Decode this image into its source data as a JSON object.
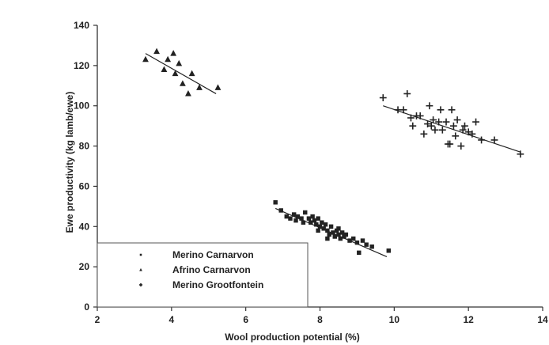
{
  "chart_data": {
    "type": "scatter",
    "xlabel": "Wool production potential (%)",
    "ylabel": "Ewe productivity (kg lamb/ewe)",
    "xlim": [
      2,
      14
    ],
    "ylim": [
      0,
      140
    ],
    "xticks": [
      2,
      4,
      6,
      8,
      10,
      12,
      14
    ],
    "yticks": [
      0,
      20,
      40,
      60,
      80,
      100,
      120,
      140
    ],
    "grid": false,
    "legend": "bottom-left",
    "series": [
      {
        "name": "Merino Carnarvon",
        "marker": "square",
        "points": [
          [
            6.8,
            52
          ],
          [
            6.95,
            48
          ],
          [
            7.1,
            45
          ],
          [
            7.2,
            44
          ],
          [
            7.3,
            46
          ],
          [
            7.35,
            43
          ],
          [
            7.4,
            45
          ],
          [
            7.5,
            44
          ],
          [
            7.55,
            42
          ],
          [
            7.6,
            47
          ],
          [
            7.7,
            44
          ],
          [
            7.75,
            42
          ],
          [
            7.8,
            45
          ],
          [
            7.85,
            43
          ],
          [
            7.9,
            41
          ],
          [
            7.95,
            44
          ],
          [
            8.0,
            40
          ],
          [
            8.05,
            42
          ],
          [
            8.1,
            39
          ],
          [
            8.15,
            41
          ],
          [
            8.2,
            38
          ],
          [
            8.25,
            36
          ],
          [
            8.3,
            40
          ],
          [
            8.35,
            37
          ],
          [
            8.4,
            35
          ],
          [
            8.45,
            38
          ],
          [
            8.5,
            36
          ],
          [
            8.55,
            34
          ],
          [
            8.6,
            37
          ],
          [
            8.65,
            35
          ],
          [
            8.7,
            36
          ],
          [
            8.8,
            33
          ],
          [
            8.9,
            34
          ],
          [
            9.0,
            32
          ],
          [
            9.05,
            27
          ],
          [
            9.15,
            33
          ],
          [
            9.25,
            31
          ],
          [
            9.4,
            30
          ],
          [
            9.85,
            28
          ],
          [
            8.2,
            34
          ],
          [
            8.5,
            39
          ],
          [
            7.95,
            38
          ]
        ],
        "fit": [
          [
            6.8,
            49
          ],
          [
            9.8,
            25
          ]
        ]
      },
      {
        "name": "Afrino Carnarvon",
        "marker": "triangle",
        "points": [
          [
            3.3,
            123
          ],
          [
            3.6,
            127
          ],
          [
            3.8,
            118
          ],
          [
            3.9,
            123
          ],
          [
            4.05,
            126
          ],
          [
            4.1,
            116
          ],
          [
            4.2,
            121
          ],
          [
            4.3,
            111
          ],
          [
            4.45,
            106
          ],
          [
            4.55,
            116
          ],
          [
            4.75,
            109
          ],
          [
            5.25,
            109
          ]
        ],
        "fit": [
          [
            3.3,
            126
          ],
          [
            5.2,
            106
          ]
        ]
      },
      {
        "name": "Merino Grootfontein",
        "marker": "plus",
        "points": [
          [
            9.7,
            104
          ],
          [
            10.1,
            98
          ],
          [
            10.25,
            98
          ],
          [
            10.35,
            106
          ],
          [
            10.45,
            94
          ],
          [
            10.5,
            90
          ],
          [
            10.6,
            95
          ],
          [
            10.7,
            95
          ],
          [
            10.8,
            86
          ],
          [
            10.9,
            91
          ],
          [
            10.95,
            100
          ],
          [
            11.0,
            90
          ],
          [
            11.05,
            93
          ],
          [
            11.1,
            88
          ],
          [
            11.2,
            92
          ],
          [
            11.25,
            98
          ],
          [
            11.3,
            88
          ],
          [
            11.4,
            92
          ],
          [
            11.45,
            81
          ],
          [
            11.5,
            81
          ],
          [
            11.55,
            98
          ],
          [
            11.6,
            90
          ],
          [
            11.65,
            85
          ],
          [
            11.7,
            93
          ],
          [
            11.8,
            80
          ],
          [
            11.85,
            88
          ],
          [
            11.9,
            90
          ],
          [
            12.0,
            87
          ],
          [
            12.1,
            86
          ],
          [
            12.2,
            92
          ],
          [
            12.35,
            83
          ],
          [
            12.7,
            83
          ],
          [
            13.4,
            76
          ]
        ],
        "fit": [
          [
            9.7,
            100
          ],
          [
            13.4,
            77
          ]
        ]
      }
    ]
  }
}
